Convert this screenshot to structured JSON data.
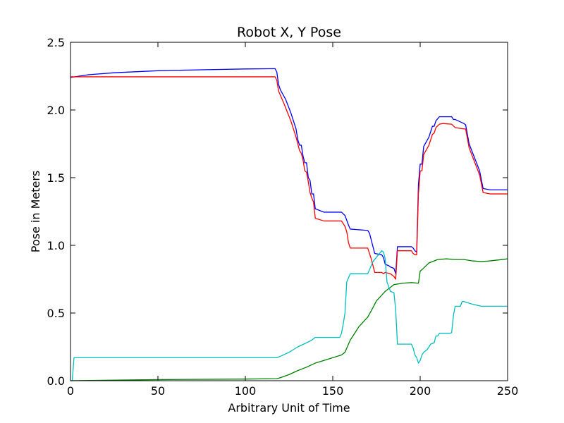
{
  "chart_data": {
    "type": "line",
    "title": "Robot X, Y Pose",
    "xlabel": "Arbitrary Unit of Time",
    "ylabel": "Pose in Meters",
    "xlim": [
      0,
      250
    ],
    "ylim": [
      0,
      2.5
    ],
    "xticks": [
      0,
      50,
      100,
      150,
      200,
      250
    ],
    "xtick_labels": [
      "0",
      "50",
      "100",
      "150",
      "200",
      "250"
    ],
    "yticks": [
      0,
      0.5,
      1.0,
      1.5,
      2.0,
      2.5
    ],
    "ytick_labels": [
      "0.0",
      "0.5",
      "1.0",
      "1.5",
      "2.0",
      "2.5"
    ],
    "grid": false,
    "series": [
      {
        "color": "#0000ff",
        "x": [
          0,
          10,
          25,
          50,
          75,
          100,
          117,
          118,
          119,
          120,
          123,
          126,
          129,
          130,
          131,
          132,
          133,
          134,
          135,
          136,
          137,
          138,
          139,
          140,
          145,
          155,
          157,
          159,
          160,
          170,
          171,
          174,
          178,
          179,
          180,
          182,
          183,
          185,
          186,
          187,
          188,
          195,
          196,
          197,
          198,
          199,
          200,
          201,
          202,
          205,
          207,
          208,
          209,
          211,
          212,
          218,
          219,
          220,
          225,
          226,
          228,
          234,
          236,
          240,
          250
        ],
        "y": [
          2.24,
          2.26,
          2.275,
          2.29,
          2.297,
          2.303,
          2.305,
          2.28,
          2.19,
          2.15,
          2.08,
          1.98,
          1.86,
          1.78,
          1.74,
          1.74,
          1.66,
          1.61,
          1.61,
          1.5,
          1.48,
          1.38,
          1.38,
          1.27,
          1.245,
          1.245,
          1.22,
          1.15,
          1.12,
          1.11,
          1.09,
          0.94,
          0.93,
          0.91,
          0.86,
          0.85,
          0.84,
          0.83,
          0.79,
          0.99,
          0.99,
          0.99,
          0.98,
          0.96,
          0.95,
          1.45,
          1.6,
          1.6,
          1.73,
          1.8,
          1.88,
          1.88,
          1.92,
          1.95,
          1.95,
          1.95,
          1.93,
          1.93,
          1.9,
          1.89,
          1.75,
          1.55,
          1.42,
          1.41,
          1.41
        ]
      },
      {
        "color": "#ff0000",
        "x": [
          0,
          50,
          100,
          117,
          118,
          119,
          122,
          126,
          129,
          130,
          131,
          132,
          133,
          134,
          135,
          136,
          137,
          138,
          139,
          140,
          145,
          155,
          157,
          158,
          159,
          160,
          170,
          172,
          174,
          178,
          179,
          180,
          183,
          185,
          186,
          187,
          188,
          195,
          196,
          197,
          198,
          199,
          200,
          201,
          202,
          205,
          207,
          208,
          209,
          211,
          213,
          218,
          220,
          225,
          226,
          228,
          234,
          236,
          240,
          250
        ],
        "y": [
          2.245,
          2.245,
          2.245,
          2.245,
          2.22,
          2.14,
          2.05,
          1.92,
          1.8,
          1.75,
          1.7,
          1.68,
          1.63,
          1.55,
          1.54,
          1.47,
          1.39,
          1.35,
          1.32,
          1.2,
          1.18,
          1.18,
          1.14,
          1.1,
          1.02,
          0.98,
          0.98,
          0.9,
          0.8,
          0.8,
          0.79,
          0.8,
          0.79,
          0.77,
          0.75,
          0.96,
          0.96,
          0.96,
          0.94,
          0.93,
          0.93,
          1.38,
          1.55,
          1.55,
          1.67,
          1.74,
          1.82,
          1.83,
          1.87,
          1.895,
          1.9,
          1.895,
          1.87,
          1.86,
          1.86,
          1.72,
          1.52,
          1.39,
          1.38,
          1.38
        ]
      },
      {
        "color": "#008000",
        "x": [
          0,
          50,
          100,
          118,
          120,
          125,
          130,
          135,
          140,
          145,
          150,
          155,
          157,
          160,
          165,
          170,
          173,
          175,
          180,
          185,
          190,
          195,
          199,
          200,
          201,
          205,
          210,
          215,
          220,
          225,
          230,
          235,
          240,
          250
        ],
        "y": [
          0.0,
          0.008,
          0.012,
          0.015,
          0.022,
          0.045,
          0.075,
          0.1,
          0.13,
          0.15,
          0.17,
          0.19,
          0.21,
          0.3,
          0.4,
          0.47,
          0.54,
          0.59,
          0.66,
          0.71,
          0.72,
          0.725,
          0.72,
          0.81,
          0.82,
          0.87,
          0.895,
          0.9,
          0.895,
          0.895,
          0.885,
          0.88,
          0.885,
          0.9
        ]
      },
      {
        "color": "#00bfbf",
        "x": [
          0,
          1,
          2,
          50,
          100,
          118,
          120,
          125,
          130,
          135,
          138,
          140,
          145,
          150,
          154,
          155,
          156,
          157,
          158,
          160,
          168,
          170,
          173,
          178,
          179,
          180,
          181,
          183,
          185,
          186,
          187,
          195,
          196,
          197,
          198,
          199,
          200,
          201,
          202,
          204,
          206,
          208,
          209,
          210,
          211,
          215,
          217,
          218,
          219,
          220,
          222,
          223,
          224,
          225,
          226,
          230,
          235,
          240,
          250
        ],
        "y": [
          0.0,
          0.0,
          0.17,
          0.17,
          0.17,
          0.17,
          0.18,
          0.21,
          0.25,
          0.28,
          0.3,
          0.32,
          0.32,
          0.32,
          0.32,
          0.35,
          0.42,
          0.5,
          0.73,
          0.79,
          0.79,
          0.79,
          0.88,
          0.96,
          0.95,
          0.9,
          0.73,
          0.66,
          0.65,
          0.52,
          0.27,
          0.27,
          0.24,
          0.19,
          0.17,
          0.13,
          0.15,
          0.19,
          0.21,
          0.23,
          0.27,
          0.28,
          0.33,
          0.33,
          0.35,
          0.35,
          0.35,
          0.355,
          0.48,
          0.55,
          0.55,
          0.55,
          0.585,
          0.585,
          0.58,
          0.565,
          0.55,
          0.55,
          0.55
        ]
      }
    ]
  }
}
